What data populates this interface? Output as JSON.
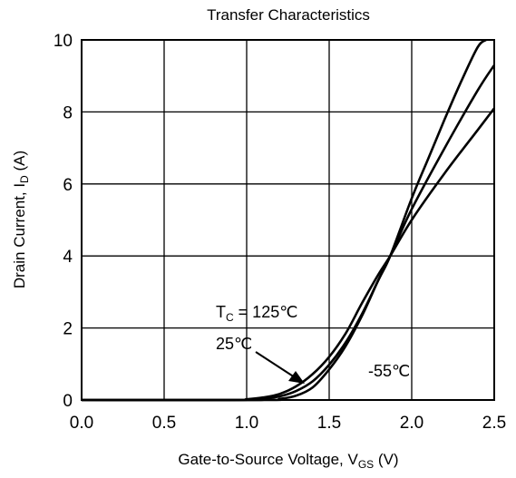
{
  "chart_data": {
    "type": "line",
    "title": "Transfer Characteristics",
    "xlabel": "Gate-to-Source Voltage, V",
    "xlabel_sub": "GS",
    "xlabel_unit": "(V)",
    "ylabel": "Drain Current, I",
    "ylabel_sub": "D",
    "ylabel_unit": "(A)",
    "xlim": [
      0.0,
      2.5
    ],
    "ylim": [
      0,
      10
    ],
    "grid": true,
    "xticks": [
      "0.0",
      "0.5",
      "1.0",
      "1.5",
      "2.0",
      "2.5"
    ],
    "yticks": [
      "0",
      "2",
      "4",
      "6",
      "8",
      "10"
    ],
    "series": [
      {
        "x": [
          0.0,
          0.9,
          1.0,
          1.1,
          1.2,
          1.3,
          1.4,
          1.5,
          1.6,
          1.7,
          1.8,
          1.87,
          2.0,
          2.2,
          2.4,
          2.5
        ],
        "y": [
          0,
          0,
          0.02,
          0.07,
          0.17,
          0.38,
          0.72,
          1.2,
          1.85,
          2.7,
          3.5,
          4.0,
          5.0,
          6.3,
          7.5,
          8.1
        ]
      },
      {
        "x": [
          0.0,
          1.0,
          1.1,
          1.2,
          1.3,
          1.4,
          1.5,
          1.6,
          1.7,
          1.8,
          1.87,
          2.0,
          2.2,
          2.4,
          2.5
        ],
        "y": [
          0,
          0,
          0.03,
          0.1,
          0.25,
          0.52,
          0.98,
          1.6,
          2.4,
          3.35,
          4.0,
          5.3,
          7.0,
          8.6,
          9.3
        ]
      },
      {
        "x": [
          0.0,
          1.1,
          1.2,
          1.3,
          1.4,
          1.5,
          1.6,
          1.7,
          1.8,
          1.87,
          2.0,
          2.1,
          2.2,
          2.3,
          2.4,
          2.45
        ],
        "y": [
          0,
          0,
          0.03,
          0.12,
          0.35,
          0.85,
          1.5,
          2.35,
          3.35,
          4.0,
          5.6,
          6.7,
          7.8,
          8.85,
          9.8,
          10.0
        ]
      }
    ],
    "annotations": [
      {
        "text": "T",
        "sub": "C",
        "rest": " = 125℃"
      },
      {
        "text": "25℃"
      },
      {
        "text": "-55℃"
      }
    ]
  }
}
